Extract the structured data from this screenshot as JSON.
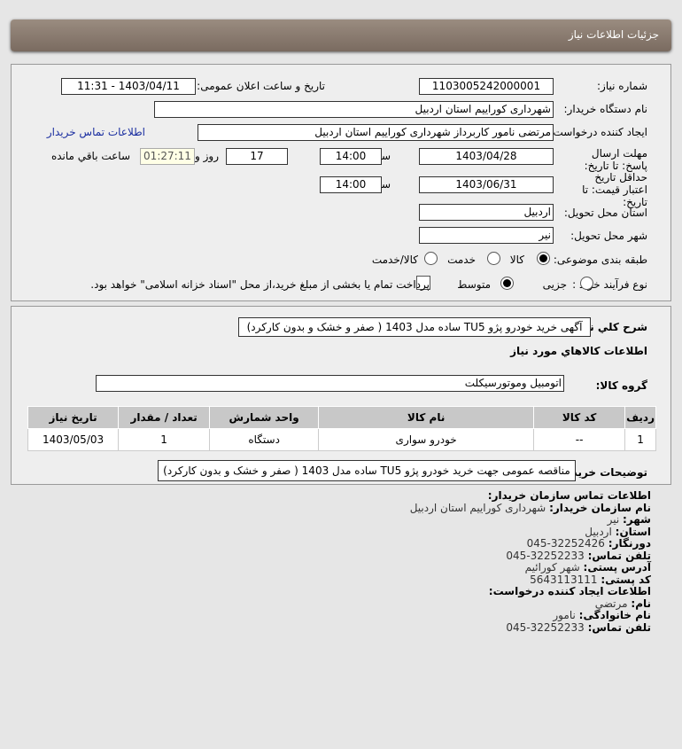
{
  "header": {
    "title": "جزئیات اطلاعات نیاز"
  },
  "form": {
    "need_number_label": "شماره نیاز:",
    "need_number": "1103005242000001",
    "announce_label": "تاریخ و ساعت اعلان عمومی:",
    "announce_value": "1403/04/11 - 11:31",
    "buyer_label": "نام دستگاه خریدار:",
    "buyer_value": "شهرداری کوراییم استان اردبیل",
    "creator_label": "ایجاد کننده درخواست:",
    "creator_value": "مرتضی نامور کاربرداز شهرداری کوراییم استان اردبیل",
    "contact_link": "اطلاعات تماس خریدار",
    "deadline_label": "مهلت ارسال پاسخ: تا تاریخ:",
    "deadline_date": "1403/04/28",
    "time_label": "ساعت",
    "deadline_time": "14:00",
    "days": "17",
    "days_label": "روز و",
    "remaining": "01:27:11",
    "remaining_label": "ساعت باقي مانده",
    "validity_label": "حداقل تاریخ اعتبار قیمت: تا تاریخ:",
    "validity_date": "1403/06/31",
    "validity_time": "14:00",
    "province_label": "استان محل تحویل:",
    "province_value": "اردبیل",
    "city_label": "شهر محل تحویل:",
    "city_value": "نیر",
    "category_label": "طبقه بندی موضوعی:",
    "category_options": [
      "کالا",
      "خدمت",
      "کالا/خدمت"
    ],
    "category_selected": "کالا",
    "process_label": "نوع فرآیند خرید :",
    "process_options": [
      "جزیی",
      "متوسط"
    ],
    "process_selected": "متوسط",
    "payment_note": "پرداخت تمام یا بخشی از مبلغ خرید،از محل \"اسناد خزانه اسلامی\" خواهد بود."
  },
  "details": {
    "summary_label": "شرح کلي نیاز:",
    "summary_value": "آگهی خرید خودرو پژو TU5 ساده مدل 1403 ( صفر و خشک و بدون کارکرد)",
    "goods_title": "اطلاعات کالاهاي مورد نیاز",
    "group_label": "گروه کالا:",
    "group_value": "اتومبیل وموتورسیکلت",
    "table": {
      "headers": [
        "ردیف",
        "کد کالا",
        "نام کالا",
        "واحد شمارش",
        "تعداد / مقدار",
        "تاریخ نیاز"
      ],
      "rows": [
        [
          "1",
          "--",
          "خودرو سواری",
          "دستگاه",
          "1",
          "1403/05/03"
        ]
      ]
    },
    "buyer_notes_label": "توضیحات خریدار:",
    "buyer_notes_value": "مناقصه عمومی جهت خرید خودرو پژو TU5 ساده مدل 1403 ( صفر و خشک و بدون کارکرد)"
  },
  "contact": {
    "title": "اطلاعات تماس سازمان خریدار:",
    "org_label": "نام سازمان خریدار:",
    "org": "شهرداری کوراییم استان اردبیل",
    "city_label": "شهر:",
    "city": "نیر",
    "province_label": "استان:",
    "province": "اردبیل",
    "fax_label": "دورنگار:",
    "fax": "32252426-045",
    "phone_label": "تلفن تماس:",
    "phone": "32252233-045",
    "address_label": "آدرس پستی:",
    "address": "شهر کورائیم",
    "postal_label": "کد پستی:",
    "postal": "5643113111",
    "creator_title": "اطلاعات ایجاد کننده درخواست:",
    "name_label": "نام:",
    "name": "مرتضی",
    "family_label": "نام خانوادگی:",
    "family": "نامور",
    "creator_phone_label": "تلفن تماس:",
    "creator_phone": "32252233-045"
  }
}
